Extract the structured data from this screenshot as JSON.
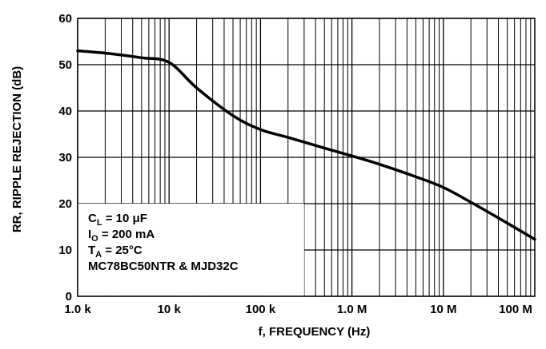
{
  "chart_data": {
    "type": "line",
    "title": "",
    "xlabel": "f, FREQUENCY (Hz)",
    "ylabel": "RR, RIPPLE REJECTION (dB)",
    "xscale": "log",
    "xlim": [
      1000,
      100000000
    ],
    "ylim": [
      0,
      60
    ],
    "grid": true,
    "x_ticks": [
      1000,
      10000,
      100000,
      1000000,
      10000000,
      100000000
    ],
    "x_tick_labels": [
      "1.0 k",
      "10 k",
      "100 k",
      "1.0 M",
      "10 M",
      "100 M"
    ],
    "y_ticks": [
      0,
      10,
      20,
      30,
      40,
      50,
      60
    ],
    "y_tick_labels": [
      "0",
      "10",
      "20",
      "30",
      "40",
      "50",
      "60"
    ],
    "series": [
      {
        "name": "",
        "x": [
          1000,
          2000,
          5000,
          10000,
          20000,
          50000,
          100000,
          200000,
          500000,
          1000000,
          2000000,
          5000000,
          10000000,
          20000000,
          50000000,
          100000000
        ],
        "y": [
          53,
          52.5,
          51.5,
          50.5,
          45,
          39,
          36,
          34.3,
          32,
          30.3,
          28.5,
          25.8,
          23.5,
          20.3,
          15.8,
          12.3
        ]
      }
    ],
    "annotation": {
      "lines": [
        {
          "main": "C",
          "sub": "L",
          "rest": " = 10 μF"
        },
        {
          "main": "I",
          "sub": "O",
          "rest": " = 200 mA"
        },
        {
          "main": "T",
          "sub": "A",
          "rest": " = 25°C"
        },
        {
          "main": "MC78BC50NTR & MJD32C",
          "sub": "",
          "rest": ""
        }
      ]
    }
  }
}
